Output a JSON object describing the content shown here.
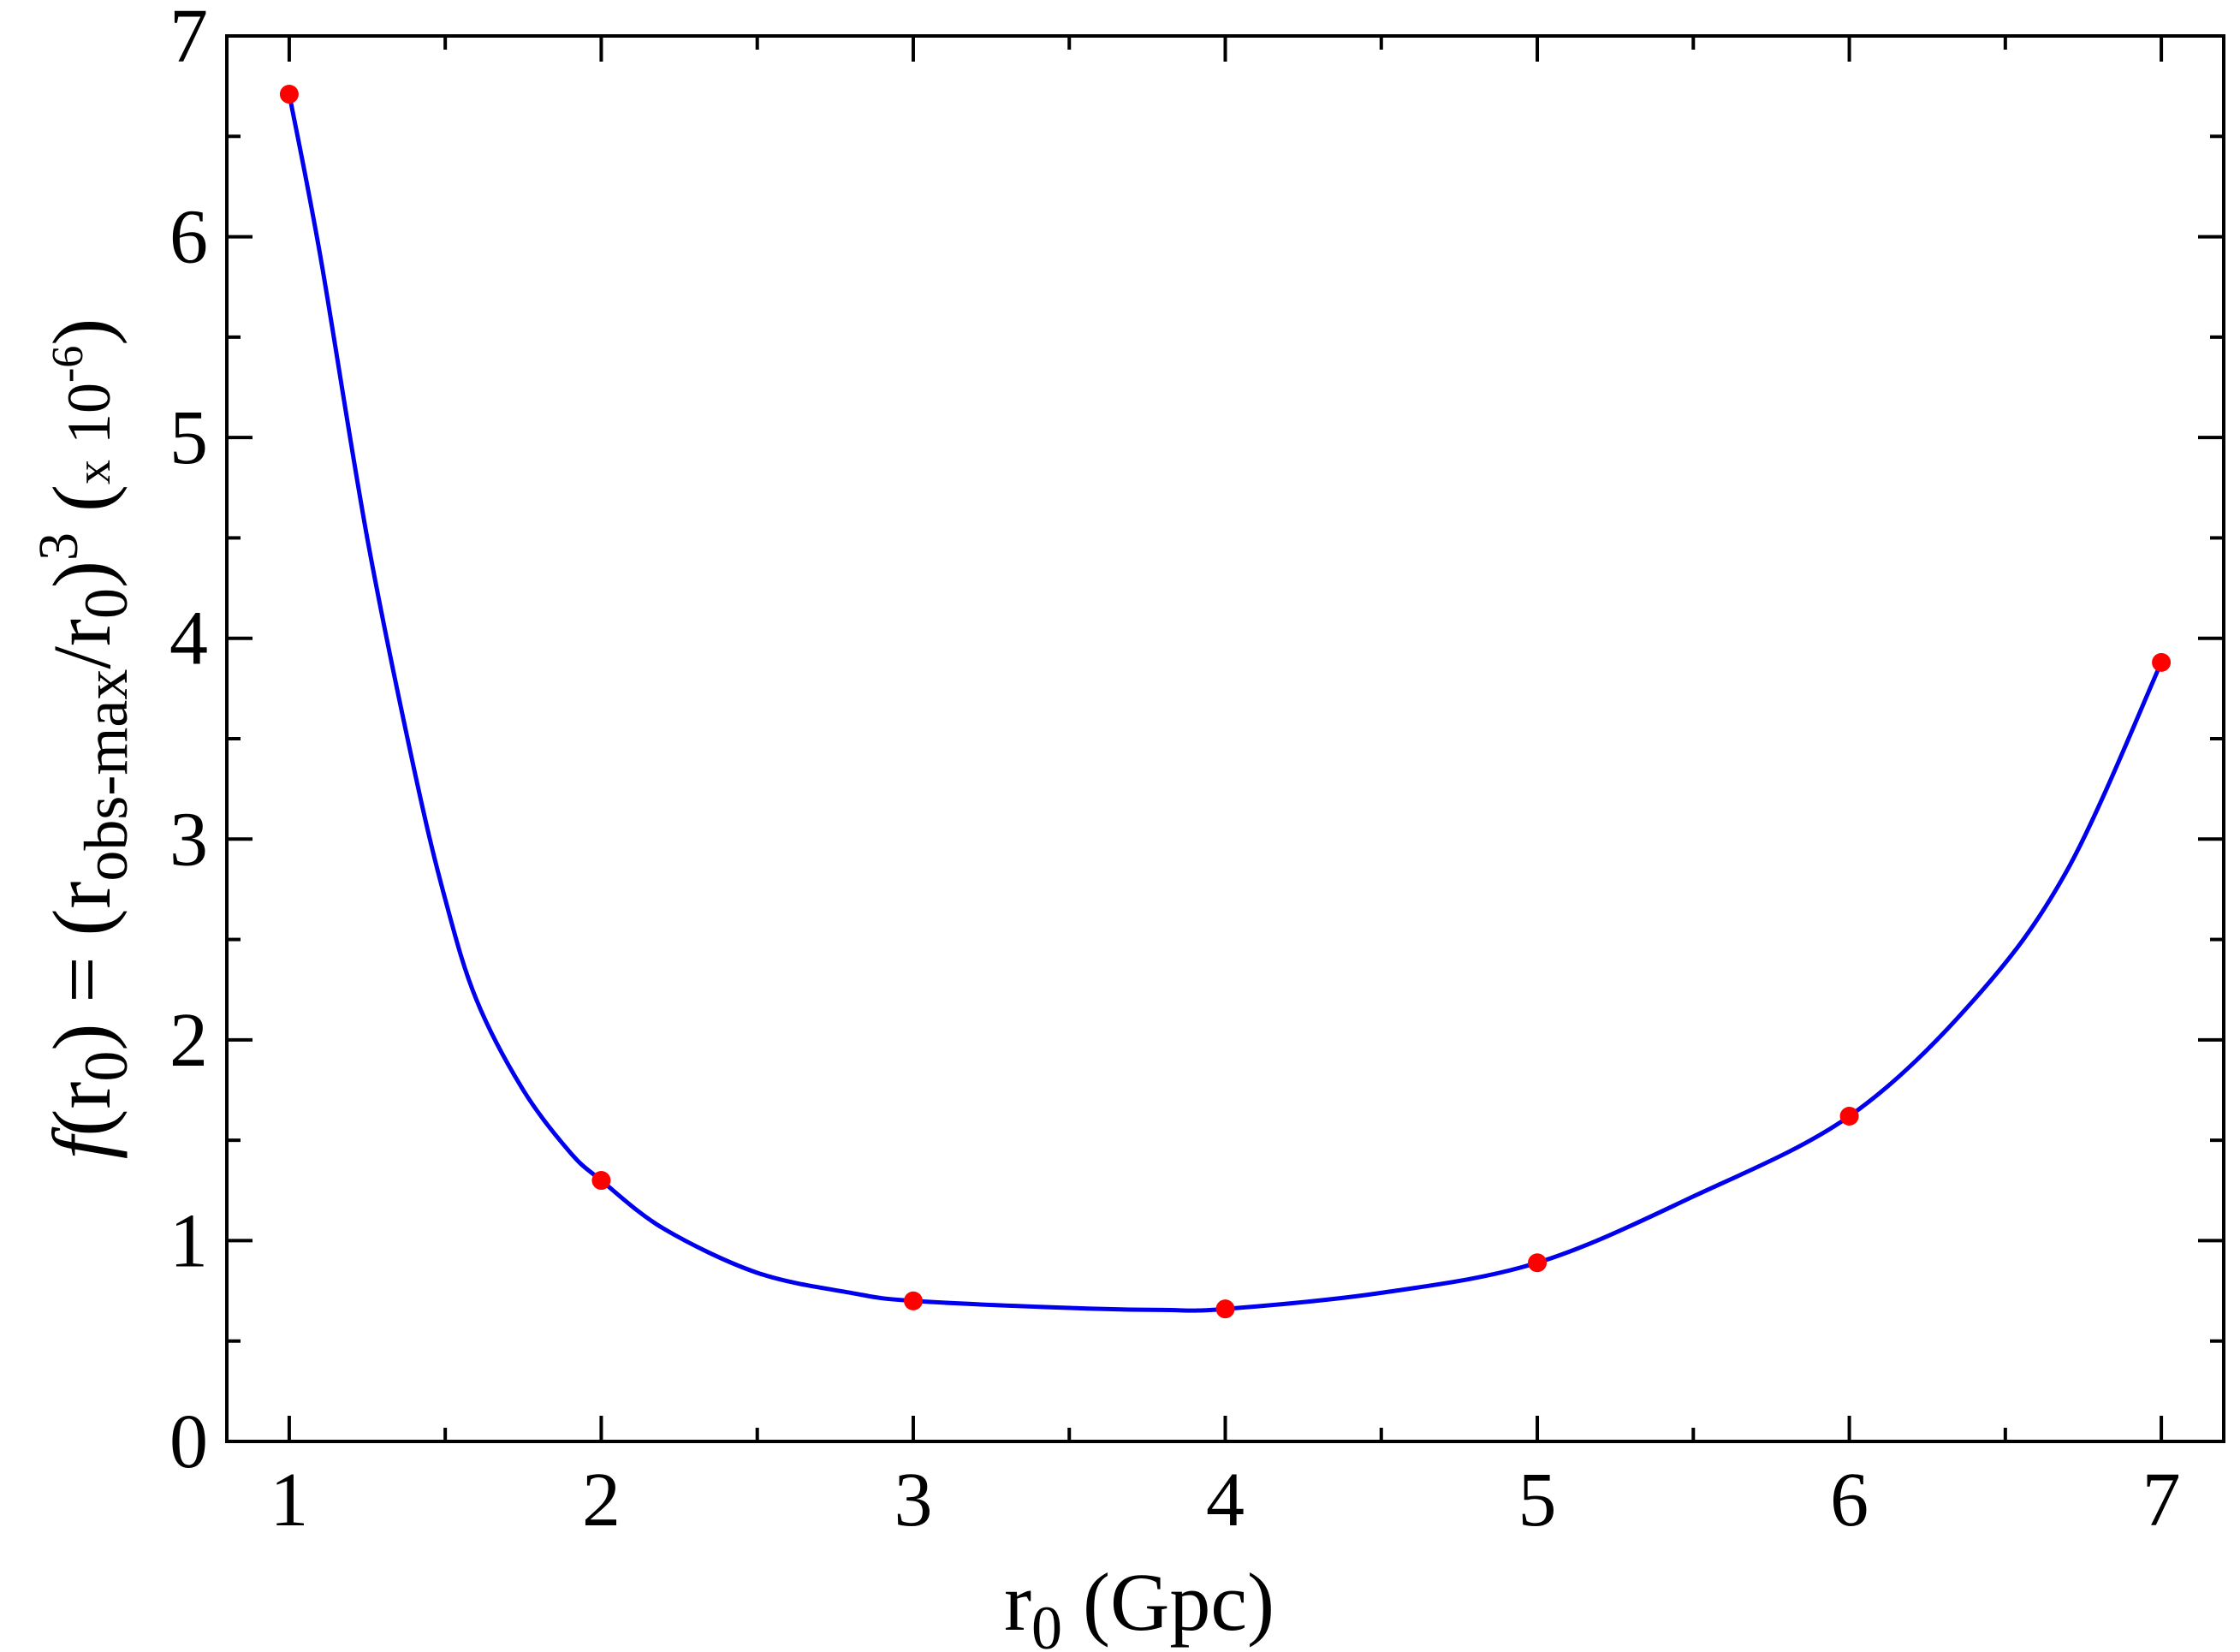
{
  "chart_data": {
    "type": "line",
    "xlabel": {
      "base": "r",
      "sub": "0",
      "rest": " (Gpc)"
    },
    "ylabel": {
      "f": "f",
      "p1": "(r",
      "s1": "0",
      "p2": ") = (r",
      "s2": "obs-max",
      "p3": "/r",
      "s3": "0",
      "p4": ")",
      "sup": "3",
      "p5": "  (",
      "x": "x",
      "p6": " 10",
      "sup2": "-6",
      "p7": ")"
    },
    "xlim": [
      0.8,
      7.2
    ],
    "ylim": [
      0,
      7
    ],
    "x_ticks": [
      "1",
      "2",
      "3",
      "4",
      "5",
      "6",
      "7"
    ],
    "y_ticks": [
      "0",
      "1",
      "2",
      "3",
      "4",
      "5",
      "6",
      "7"
    ],
    "grid": false,
    "series": [
      {
        "kind": "points",
        "color": "#ff0000",
        "x": [
          1,
          2,
          3,
          4,
          5,
          6,
          7
        ],
        "y": [
          6.71,
          1.3,
          0.7,
          0.66,
          0.89,
          1.62,
          3.88
        ]
      },
      {
        "kind": "curve",
        "color": "#0000ee",
        "x": [
          1.0,
          1.1,
          1.25,
          1.4,
          1.5,
          1.6,
          1.75,
          1.9,
          2.0,
          2.2,
          2.5,
          2.8,
          3.0,
          3.5,
          3.8,
          4.0,
          4.5,
          5.0,
          5.5,
          6.0,
          6.4,
          6.7,
          7.0
        ],
        "y": [
          6.71,
          5.9,
          4.5,
          3.35,
          2.7,
          2.2,
          1.75,
          1.44,
          1.3,
          1.06,
          0.84,
          0.74,
          0.7,
          0.665,
          0.655,
          0.66,
          0.74,
          0.89,
          1.22,
          1.62,
          2.2,
          2.85,
          3.88
        ]
      }
    ]
  }
}
